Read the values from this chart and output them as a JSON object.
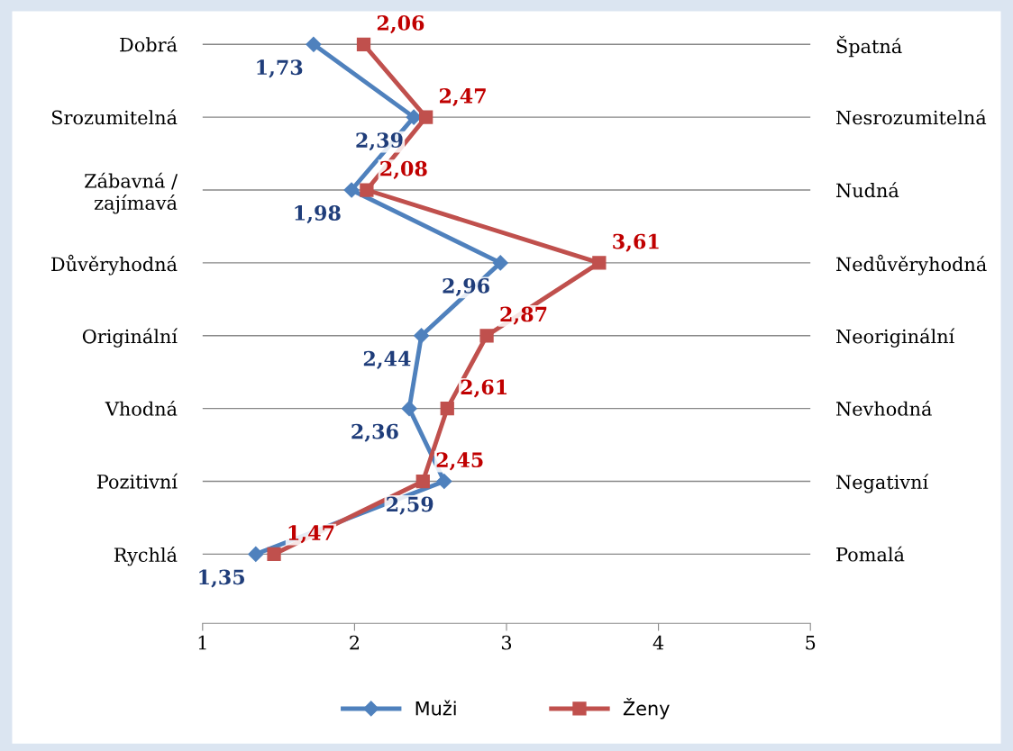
{
  "chart_data": {
    "type": "line",
    "orientation": "horizontal",
    "categories": [
      "Dobrá",
      "Srozumitelná",
      "Zábavná /\nzajímavá",
      "Důvěryhodná",
      "Originální",
      "Vhodná",
      "Pozitivní",
      "Rychlá"
    ],
    "y2_categories": [
      "Špatná",
      "Nesrozumitelná",
      "Nudná",
      "Nedůvěryhodná",
      "Neoriginální",
      "Nevhodná",
      "Negativní",
      "Pomalá"
    ],
    "series": [
      {
        "name": "Muži",
        "color": "#4f81bd",
        "marker": "diamond",
        "values": [
          1.73,
          2.39,
          1.98,
          2.96,
          2.44,
          2.36,
          2.59,
          1.35
        ],
        "value_labels": [
          "1,73",
          "2,39",
          "1,98",
          "2,96",
          "2,44",
          "2,36",
          "2,59",
          "1,35"
        ]
      },
      {
        "name": "Ženy",
        "color": "#c0504d",
        "marker": "square",
        "values": [
          2.06,
          2.47,
          2.08,
          3.61,
          2.87,
          2.61,
          2.45,
          1.47
        ],
        "value_labels": [
          "2,06",
          "2,47",
          "2,08",
          "3,61",
          "2,87",
          "2,61",
          "2,45",
          "1,47"
        ]
      }
    ],
    "xlim": [
      1,
      5
    ],
    "xticks": [
      1,
      2,
      3,
      4,
      5
    ],
    "grid": "y",
    "legend": "bottom",
    "line_style": "solid"
  }
}
